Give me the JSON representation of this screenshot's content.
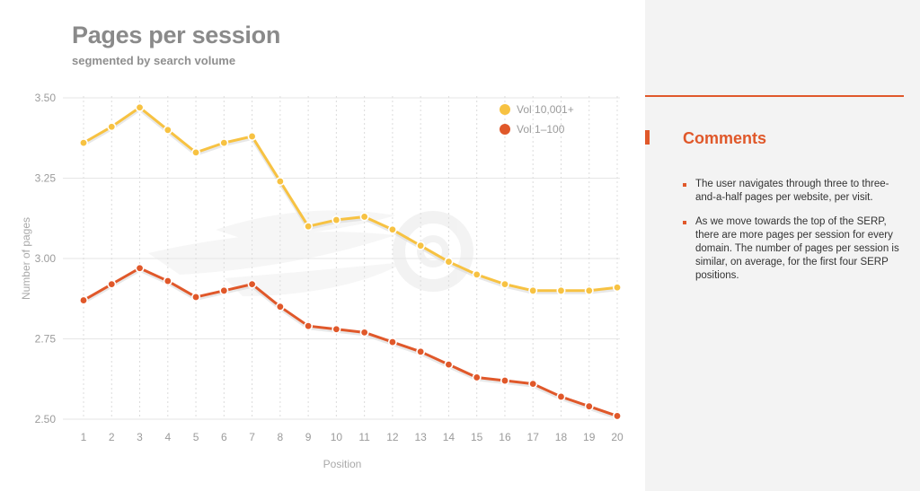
{
  "chart_data": {
    "type": "line",
    "title": "Pages per session",
    "subtitle": "segmented by search volume",
    "xlabel": "Position",
    "ylabel": "Number of pages",
    "x": [
      1,
      2,
      3,
      4,
      5,
      6,
      7,
      8,
      9,
      10,
      11,
      12,
      13,
      14,
      15,
      16,
      17,
      18,
      19,
      20
    ],
    "ylim": [
      2.5,
      3.5
    ],
    "yticks": [
      "2.50",
      "2.75",
      "3.00",
      "3.25",
      "3.50"
    ],
    "grid": {
      "horizontal": true,
      "vertical": "dotted"
    },
    "legend_position": "top-right",
    "series": [
      {
        "name": "Vol 10,001+",
        "color": "#f7c242",
        "values": [
          3.36,
          3.41,
          3.47,
          3.4,
          3.33,
          3.36,
          3.38,
          3.24,
          3.1,
          3.12,
          3.13,
          3.09,
          3.04,
          2.99,
          2.95,
          2.92,
          2.9,
          2.9,
          2.9,
          2.91
        ]
      },
      {
        "name": "Vol 1–100",
        "color": "#e0582a",
        "values": [
          2.87,
          2.92,
          2.97,
          2.93,
          2.88,
          2.9,
          2.92,
          2.85,
          2.79,
          2.78,
          2.77,
          2.74,
          2.71,
          2.67,
          2.63,
          2.62,
          2.61,
          2.57,
          2.54,
          2.51
        ]
      }
    ]
  },
  "comments": {
    "title": "Comments",
    "items": [
      "The user navigates through three to three-and-a-half pages per website, per visit.",
      "As we move towards the top of the SERP, there are more pages per session for every domain. The number of pages per session is similar, on average, for the first four SERP positions."
    ]
  }
}
